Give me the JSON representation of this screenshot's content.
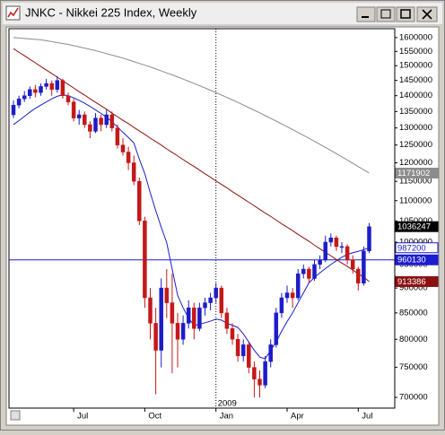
{
  "chart_data": {
    "type": "candlestick",
    "title": "JNKC - Nikkei 225 Index, Weekly",
    "categories": [
      null,
      null,
      null,
      null,
      null,
      null,
      null,
      null,
      null,
      null,
      null,
      "Jul",
      null,
      null,
      null,
      null,
      null,
      null,
      null,
      null,
      null,
      null,
      null,
      null,
      "Oct",
      null,
      null,
      null,
      null,
      null,
      null,
      null,
      null,
      null,
      null,
      null,
      null,
      "Jan",
      null,
      null,
      null,
      null,
      null,
      null,
      null,
      null,
      null,
      null,
      null,
      null,
      "Apr",
      null,
      null,
      null,
      null,
      null,
      null,
      null,
      null,
      null,
      null,
      null,
      null,
      "Jul",
      null,
      null
    ],
    "open": [
      1340000,
      1370000,
      1390000,
      1400000,
      1420000,
      1410000,
      1430000,
      1440000,
      1420000,
      1450000,
      1400000,
      1380000,
      1330000,
      1340000,
      1310000,
      1290000,
      1330000,
      1310000,
      1340000,
      1300000,
      1250000,
      1230000,
      1200000,
      1150000,
      1050000,
      880000,
      830000,
      780000,
      900000,
      870000,
      830000,
      800000,
      830000,
      860000,
      820000,
      860000,
      870000,
      880000,
      900000,
      850000,
      820000,
      800000,
      770000,
      790000,
      750000,
      730000,
      720000,
      760000,
      790000,
      850000,
      880000,
      890000,
      880000,
      930000,
      940000,
      920000,
      950000,
      960000,
      1000000,
      1010000,
      990000,
      990000,
      960000,
      940000,
      910000,
      980000
    ],
    "high": [
      1385000,
      1400000,
      1415000,
      1430000,
      1435000,
      1440000,
      1455000,
      1450000,
      1465000,
      1455000,
      1410000,
      1390000,
      1355000,
      1350000,
      1320000,
      1345000,
      1340000,
      1355000,
      1350000,
      1310000,
      1270000,
      1245000,
      1220000,
      1160000,
      1060000,
      900000,
      860000,
      920000,
      940000,
      930000,
      850000,
      845000,
      875000,
      870000,
      870000,
      880000,
      890000,
      910000,
      905000,
      860000,
      830000,
      810000,
      800000,
      795000,
      760000,
      745000,
      770000,
      800000,
      860000,
      890000,
      905000,
      900000,
      940000,
      950000,
      945000,
      960000,
      970000,
      1015000,
      1020000,
      1015000,
      1000000,
      995000,
      970000,
      945000,
      990000,
      1045000
    ],
    "low": [
      1330000,
      1360000,
      1380000,
      1390000,
      1395000,
      1400000,
      1420000,
      1400000,
      1410000,
      1390000,
      1370000,
      1320000,
      1310000,
      1300000,
      1270000,
      1285000,
      1290000,
      1300000,
      1290000,
      1240000,
      1220000,
      1180000,
      1140000,
      1040000,
      860000,
      800000,
      705000,
      750000,
      840000,
      740000,
      750000,
      790000,
      820000,
      800000,
      815000,
      845000,
      855000,
      870000,
      840000,
      810000,
      790000,
      760000,
      760000,
      740000,
      700000,
      700000,
      715000,
      750000,
      785000,
      840000,
      870000,
      860000,
      875000,
      920000,
      910000,
      915000,
      940000,
      955000,
      990000,
      980000,
      975000,
      950000,
      930000,
      895000,
      905000,
      975000
    ],
    "close": [
      1370000,
      1390000,
      1400000,
      1420000,
      1410000,
      1430000,
      1440000,
      1420000,
      1450000,
      1400000,
      1380000,
      1330000,
      1340000,
      1310000,
      1290000,
      1330000,
      1310000,
      1340000,
      1300000,
      1250000,
      1230000,
      1200000,
      1150000,
      1050000,
      880000,
      830000,
      780000,
      900000,
      870000,
      830000,
      800000,
      830000,
      860000,
      820000,
      860000,
      870000,
      880000,
      900000,
      850000,
      820000,
      800000,
      770000,
      790000,
      750000,
      730000,
      720000,
      760000,
      790000,
      850000,
      880000,
      890000,
      880000,
      930000,
      940000,
      920000,
      950000,
      960000,
      1000000,
      1010000,
      990000,
      990000,
      960000,
      940000,
      910000,
      980000,
      1036247
    ],
    "up_color": "#1c1cc8",
    "down_color": "#c41818",
    "close_label_color": "#000000",
    "series": [
      {
        "color": "#1c1cd0",
        "values": [
          1310000,
          1322000,
          1335000,
          1348000,
          1360000,
          1370000,
          1380000,
          1390000,
          1398000,
          1403000,
          1400000,
          1393000,
          1385000,
          1376000,
          1366000,
          1355000,
          1344000,
          1333000,
          1318000,
          1303000,
          1287000,
          1272000,
          1256000,
          1210000,
          1170000,
          1120000,
          1075000,
          1035000,
          999000,
          940000,
          885000,
          860000,
          840000,
          826000,
          828000,
          831000,
          834000,
          838000,
          836000,
          830000,
          826000,
          822000,
          810000,
          795000,
          780000,
          768000,
          765000,
          780000,
          795000,
          815000,
          833000,
          850000,
          870000,
          890000,
          911000,
          922000,
          932000,
          941000,
          950000,
          958000,
          966000,
          972000,
          976000,
          979000,
          983000,
          987200
        ]
      },
      {
        "color": "#8c1010",
        "values": [
          1560000,
          1547000,
          1535000,
          1522000,
          1510000,
          1497000,
          1485000,
          1473000,
          1461000,
          1449000,
          1437000,
          1425000,
          1413000,
          1402000,
          1390000,
          1379000,
          1368000,
          1357000,
          1345000,
          1334000,
          1323000,
          1313000,
          1302000,
          1291000,
          1281000,
          1270000,
          1260000,
          1250000,
          1239000,
          1229000,
          1219000,
          1209000,
          1199000,
          1190000,
          1180000,
          1170000,
          1161000,
          1151000,
          1142000,
          1133000,
          1123000,
          1114000,
          1105000,
          1096000,
          1087000,
          1078000,
          1069000,
          1061000,
          1052000,
          1043000,
          1035000,
          1027000,
          1018000,
          1010000,
          1002000,
          993000,
          985000,
          977000,
          969000,
          961000,
          953000,
          946000,
          938000,
          930000,
          923000,
          913386
        ]
      },
      {
        "color": "#8c8c8c",
        "values": [
          1600000,
          1598400,
          1596700,
          1595100,
          1593400,
          1591800,
          1588500,
          1585200,
          1581800,
          1578500,
          1575300,
          1570800,
          1566400,
          1561900,
          1557500,
          1553000,
          1547600,
          1542300,
          1536900,
          1531600,
          1526200,
          1520100,
          1514000,
          1507800,
          1501700,
          1495600,
          1488800,
          1482100,
          1475300,
          1468600,
          1461800,
          1454500,
          1447200,
          1440000,
          1432600,
          1425300,
          1417600,
          1409900,
          1402100,
          1394400,
          1386600,
          1378500,
          1370400,
          1362200,
          1354100,
          1345900,
          1337500,
          1329100,
          1320700,
          1312300,
          1303900,
          1295300,
          1286700,
          1278000,
          1269400,
          1260800,
          1252000,
          1243200,
          1234300,
          1225500,
          1216700,
          1207700,
          1198700,
          1189800,
          1180800,
          1171902
        ]
      }
    ],
    "hline": {
      "value": 960130,
      "color": "#1c1cd0"
    },
    "annotation": {
      "text": "2009",
      "category": "Jan"
    },
    "ylim": [
      683000,
      1633000
    ],
    "log_scale": true,
    "grid": false,
    "yticks": [
      700000,
      750000,
      800000,
      850000,
      900000,
      950000,
      1000000,
      1050000,
      1100000,
      1150000,
      1200000,
      1250000,
      1300000,
      1350000,
      1400000,
      1450000,
      1500000,
      1550000,
      1600000
    ]
  }
}
